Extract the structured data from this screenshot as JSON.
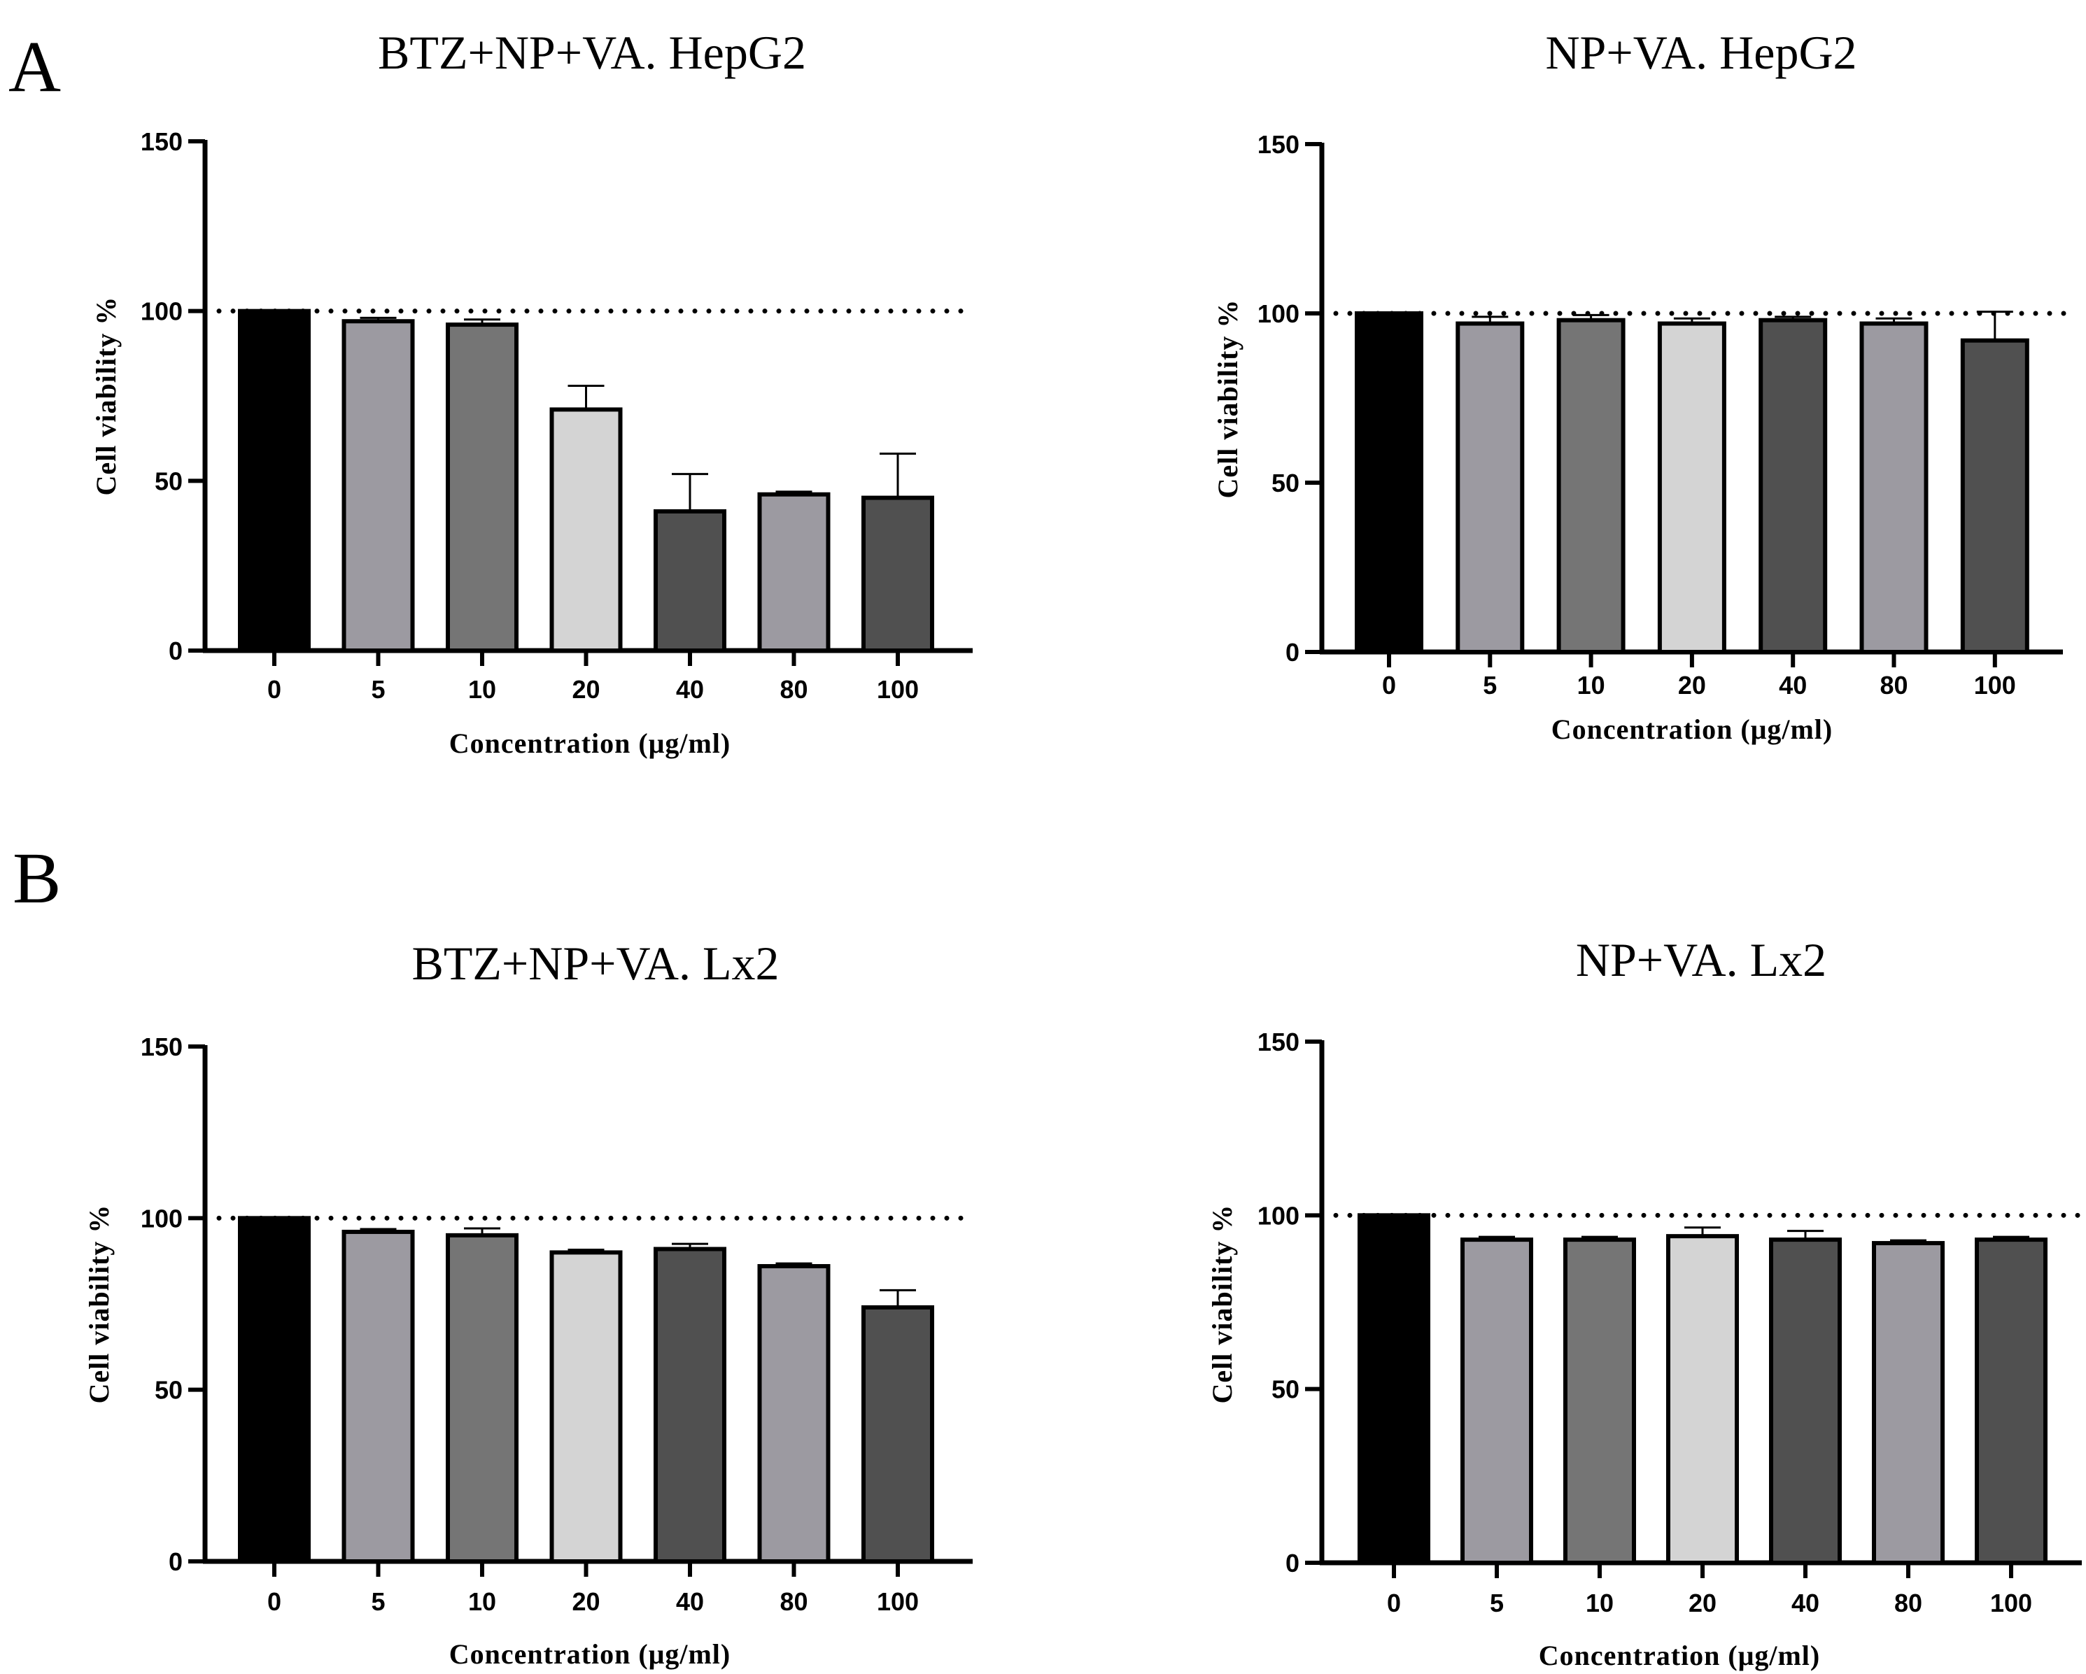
{
  "panels": [
    {
      "id": "panel-a",
      "label": "A"
    },
    {
      "id": "panel-b",
      "label": "B"
    }
  ],
  "chart_data": [
    {
      "type": "bar",
      "title": "BTZ+NP+VA. HepG2",
      "categories": [
        "0",
        "5",
        "10",
        "20",
        "40",
        "80",
        "100"
      ],
      "values": [
        100,
        97,
        96,
        71,
        41,
        46,
        45
      ],
      "errors": [
        0,
        1,
        1.5,
        7,
        11,
        0.8,
        13
      ],
      "bar_colors": [
        "#000000",
        "#9c9aa1",
        "#757575",
        "#d4d4d4",
        "#505050",
        "#9c9aa1",
        "#505050"
      ],
      "xlabel": "Concentration  (μg/ml)",
      "ylabel": "Cell  viability  %",
      "ylim": [
        0,
        150
      ],
      "yticks": [
        "0",
        "50",
        "100",
        "150"
      ],
      "reference_line": 100
    },
    {
      "type": "bar",
      "title": "NP+VA. HepG2",
      "categories": [
        "0",
        "5",
        "10",
        "20",
        "40",
        "80",
        "100"
      ],
      "values": [
        100,
        97,
        98,
        97,
        98,
        97,
        92
      ],
      "errors": [
        0,
        2,
        1.5,
        1.5,
        1,
        1.5,
        8.5
      ],
      "bar_colors": [
        "#000000",
        "#9c9aa1",
        "#757575",
        "#d4d4d4",
        "#505050",
        "#9c9aa1",
        "#505050"
      ],
      "xlabel": "Concentration  (μg/ml)",
      "ylabel": "Cell  viability  %",
      "ylim": [
        0,
        150
      ],
      "yticks": [
        "0",
        "50",
        "100",
        "150"
      ],
      "reference_line": 100
    },
    {
      "type": "bar",
      "title": "BTZ+NP+VA. Lx2",
      "categories": [
        "0",
        "5",
        "10",
        "20",
        "40",
        "80",
        "100"
      ],
      "values": [
        100,
        96,
        95,
        90,
        91,
        86,
        74
      ],
      "errors": [
        0,
        0.8,
        2,
        0.8,
        1.5,
        0.8,
        5
      ],
      "bar_colors": [
        "#000000",
        "#9c9aa1",
        "#757575",
        "#d4d4d4",
        "#505050",
        "#9c9aa1",
        "#505050"
      ],
      "xlabel": "Concentration  (μg/ml)",
      "ylabel": "Cell  viability  %",
      "ylim": [
        0,
        150
      ],
      "yticks": [
        "0",
        "50",
        "100",
        "150"
      ],
      "reference_line": 100
    },
    {
      "type": "bar",
      "title": "NP+VA.  Lx2",
      "categories": [
        "0",
        "5",
        "10",
        "20",
        "40",
        "80",
        "100"
      ],
      "values": [
        100,
        93,
        93,
        94,
        93,
        92,
        93
      ],
      "errors": [
        0,
        0.8,
        0.8,
        2.5,
        2.5,
        0.8,
        0.8
      ],
      "bar_colors": [
        "#000000",
        "#9c9aa1",
        "#757575",
        "#d4d4d4",
        "#505050",
        "#9c9aa1",
        "#505050"
      ],
      "xlabel": "Concentration  (μg/ml)",
      "ylabel": "Cell  viability  %",
      "ylim": [
        0,
        150
      ],
      "yticks": [
        "0",
        "50",
        "100",
        "150"
      ],
      "reference_line": 100
    }
  ]
}
